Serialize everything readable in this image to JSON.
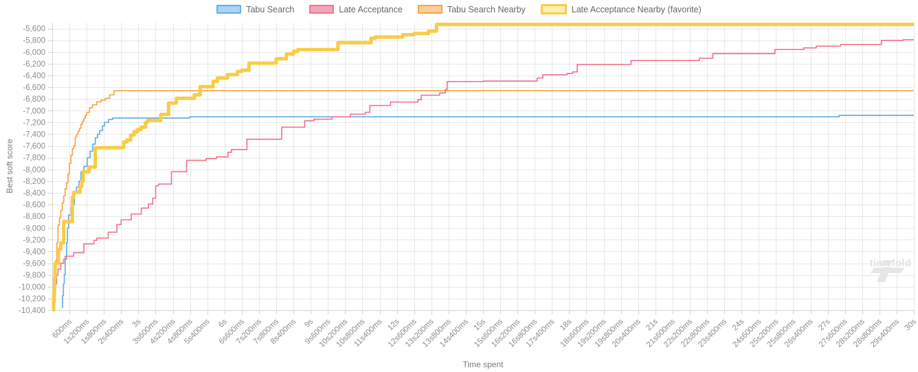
{
  "legend": {
    "items": [
      {
        "label": "Tabu Search",
        "fill": "#a9d3f2",
        "border": "#64aee6",
        "border_width": 2
      },
      {
        "label": "Late Acceptance",
        "fill": "#f7a3ba",
        "border": "#f2758f",
        "border_width": 2
      },
      {
        "label": "Tabu Search Nearby",
        "fill": "#fbcd99",
        "border": "#f8a444",
        "border_width": 2
      },
      {
        "label": "Late Acceptance Nearby (favorite)",
        "fill": "#fbf0af",
        "border": "#f8cc47",
        "border_width": 3
      }
    ]
  },
  "axes": {
    "y_title": "Best soft score",
    "x_title": "Time spent"
  },
  "watermark": {
    "text": "timefold"
  },
  "chart_data": {
    "type": "line",
    "step": true,
    "title": "",
    "xlabel": "Time spent",
    "ylabel": "Best soft score",
    "xlim": [
      0,
      30
    ],
    "ylim": [
      -10400,
      -5500
    ],
    "grid": true,
    "legend_position": "top",
    "grid_color": "#e8e8e8",
    "axis_color": "#d4d4d4",
    "tick_label_color": "#8c8c8c",
    "y_ticks": [
      [
        -5600,
        "-5,600"
      ],
      [
        -5800,
        "-5,800"
      ],
      [
        -6000,
        "-6,000"
      ],
      [
        -6200,
        "-6,200"
      ],
      [
        -6400,
        "-6,400"
      ],
      [
        -6600,
        "-6,600"
      ],
      [
        -6800,
        "-6,800"
      ],
      [
        -7000,
        "-7,000"
      ],
      [
        -7200,
        "-7,200"
      ],
      [
        -7400,
        "-7,400"
      ],
      [
        -7600,
        "-7,600"
      ],
      [
        -7800,
        "-7,800"
      ],
      [
        -8000,
        "-8,000"
      ],
      [
        -8200,
        "-8,200"
      ],
      [
        -8400,
        "-8,400"
      ],
      [
        -8600,
        "-8,600"
      ],
      [
        -8800,
        "-8,800"
      ],
      [
        -9000,
        "-9,000"
      ],
      [
        -9200,
        "-9,200"
      ],
      [
        -9400,
        "-9,400"
      ],
      [
        -9600,
        "-9,600"
      ],
      [
        -9800,
        "-9,800"
      ],
      [
        -10000,
        "-10,000"
      ],
      [
        -10200,
        "-10,200"
      ],
      [
        -10400,
        "-10,400"
      ]
    ],
    "x_ticks": [
      [
        0.6,
        "600ms"
      ],
      [
        1.2,
        "1s200ms"
      ],
      [
        1.8,
        "1s800ms"
      ],
      [
        2.4,
        "2s400ms"
      ],
      [
        3,
        "3s"
      ],
      [
        3.6,
        "3s600ms"
      ],
      [
        4.2,
        "4s200ms"
      ],
      [
        4.8,
        "4s800ms"
      ],
      [
        5.4,
        "5s400ms"
      ],
      [
        6,
        "6s"
      ],
      [
        6.6,
        "6s600ms"
      ],
      [
        7.2,
        "7s200ms"
      ],
      [
        7.8,
        "7s800ms"
      ],
      [
        8.4,
        "8s400ms"
      ],
      [
        9,
        "9s"
      ],
      [
        9.6,
        "9s600ms"
      ],
      [
        10.2,
        "10s200ms"
      ],
      [
        10.8,
        "10s800ms"
      ],
      [
        11.4,
        "11s400ms"
      ],
      [
        12,
        "12s"
      ],
      [
        12.6,
        "12s600ms"
      ],
      [
        13.2,
        "13s200ms"
      ],
      [
        13.8,
        "13s800ms"
      ],
      [
        14.4,
        "14s400ms"
      ],
      [
        15,
        "15s"
      ],
      [
        15.6,
        "15s600ms"
      ],
      [
        16.2,
        "16s200ms"
      ],
      [
        16.8,
        "16s800ms"
      ],
      [
        17.4,
        "17s400ms"
      ],
      [
        18,
        "18s"
      ],
      [
        18.6,
        "18s600ms"
      ],
      [
        19.2,
        "19s200ms"
      ],
      [
        19.8,
        "19s800ms"
      ],
      [
        20.4,
        "20s400ms"
      ],
      [
        21,
        "21s"
      ],
      [
        21.6,
        "21s600ms"
      ],
      [
        22.2,
        "22s200ms"
      ],
      [
        22.8,
        "22s800ms"
      ],
      [
        23.4,
        "23s400ms"
      ],
      [
        24,
        "24s"
      ],
      [
        24.6,
        "24s600ms"
      ],
      [
        25.2,
        "25s200ms"
      ],
      [
        25.8,
        "25s800ms"
      ],
      [
        26.4,
        "26s400ms"
      ],
      [
        27,
        "27s"
      ],
      [
        27.6,
        "27s600ms"
      ],
      [
        28.2,
        "28s200ms"
      ],
      [
        28.8,
        "28s800ms"
      ],
      [
        29.4,
        "29s400ms"
      ],
      [
        30,
        "30s"
      ]
    ],
    "series": [
      {
        "id": "tabu-search",
        "name": "Tabu Search",
        "color": "#64aee6",
        "width": 1.7,
        "points": [
          [
            0.33,
            -10350
          ],
          [
            0.36,
            -10150
          ],
          [
            0.39,
            -9950
          ],
          [
            0.42,
            -9790
          ],
          [
            0.45,
            -9480
          ],
          [
            0.5,
            -9250
          ],
          [
            0.53,
            -9000
          ],
          [
            0.57,
            -8780
          ],
          [
            0.65,
            -8650
          ],
          [
            0.7,
            -8600
          ],
          [
            0.77,
            -8390
          ],
          [
            0.85,
            -8300
          ],
          [
            0.93,
            -8200
          ],
          [
            1.0,
            -8040
          ],
          [
            1.1,
            -7950
          ],
          [
            1.22,
            -7800
          ],
          [
            1.32,
            -7690
          ],
          [
            1.41,
            -7570
          ],
          [
            1.5,
            -7460
          ],
          [
            1.58,
            -7400
          ],
          [
            1.65,
            -7340
          ],
          [
            1.75,
            -7260
          ],
          [
            1.82,
            -7200
          ],
          [
            1.96,
            -7150
          ],
          [
            2.1,
            -7125
          ],
          [
            4.78,
            -7105
          ],
          [
            27.4,
            -7080
          ],
          [
            30,
            -7080
          ]
        ]
      },
      {
        "id": "tabu-search-nearby",
        "name": "Tabu Search Nearby",
        "color": "#f8a444",
        "width": 1.7,
        "points": [
          [
            0.07,
            -10260
          ],
          [
            0.1,
            -9900
          ],
          [
            0.13,
            -9550
          ],
          [
            0.16,
            -9250
          ],
          [
            0.2,
            -8950
          ],
          [
            0.25,
            -8830
          ],
          [
            0.3,
            -8700
          ],
          [
            0.35,
            -8570
          ],
          [
            0.4,
            -8450
          ],
          [
            0.45,
            -8330
          ],
          [
            0.5,
            -8230
          ],
          [
            0.55,
            -8080
          ],
          [
            0.6,
            -7900
          ],
          [
            0.65,
            -7760
          ],
          [
            0.7,
            -7650
          ],
          [
            0.75,
            -7600
          ],
          [
            0.8,
            -7450
          ],
          [
            0.85,
            -7400
          ],
          [
            0.9,
            -7350
          ],
          [
            0.95,
            -7300
          ],
          [
            1.0,
            -7230
          ],
          [
            1.05,
            -7180
          ],
          [
            1.1,
            -7130
          ],
          [
            1.15,
            -7080
          ],
          [
            1.2,
            -7030
          ],
          [
            1.3,
            -6950
          ],
          [
            1.4,
            -6900
          ],
          [
            1.55,
            -6850
          ],
          [
            1.7,
            -6820
          ],
          [
            1.85,
            -6790
          ],
          [
            2.0,
            -6730
          ],
          [
            2.15,
            -6660
          ],
          [
            30,
            -6660
          ]
        ]
      },
      {
        "id": "late-acceptance",
        "name": "Late Acceptance",
        "color": "#f2758f",
        "width": 1.7,
        "points": [
          [
            0.05,
            -10200
          ],
          [
            0.08,
            -10050
          ],
          [
            0.1,
            -9950
          ],
          [
            0.15,
            -9800
          ],
          [
            0.2,
            -9700
          ],
          [
            0.3,
            -9600
          ],
          [
            0.4,
            -9530
          ],
          [
            0.5,
            -9480
          ],
          [
            0.75,
            -9420
          ],
          [
            1.1,
            -9270
          ],
          [
            1.45,
            -9210
          ],
          [
            1.55,
            -9170
          ],
          [
            1.95,
            -9070
          ],
          [
            2.25,
            -8940
          ],
          [
            2.4,
            -8860
          ],
          [
            2.75,
            -8760
          ],
          [
            3.1,
            -8660
          ],
          [
            3.35,
            -8590
          ],
          [
            3.5,
            -8490
          ],
          [
            3.6,
            -8280
          ],
          [
            3.7,
            -8250
          ],
          [
            4.15,
            -8040
          ],
          [
            4.68,
            -7846
          ],
          [
            5.36,
            -7815
          ],
          [
            5.72,
            -7787
          ],
          [
            6.12,
            -7709
          ],
          [
            6.24,
            -7662
          ],
          [
            6.78,
            -7487
          ],
          [
            7.99,
            -7281
          ],
          [
            8.79,
            -7172
          ],
          [
            9.11,
            -7144
          ],
          [
            9.74,
            -7106
          ],
          [
            10.38,
            -7059
          ],
          [
            10.9,
            -7028
          ],
          [
            11.06,
            -6911
          ],
          [
            11.78,
            -6853
          ],
          [
            12.73,
            -6814
          ],
          [
            12.85,
            -6736
          ],
          [
            13.49,
            -6697
          ],
          [
            13.69,
            -6639
          ],
          [
            13.75,
            -6503
          ],
          [
            15.01,
            -6495
          ],
          [
            16.88,
            -6444
          ],
          [
            17.08,
            -6386
          ],
          [
            17.92,
            -6367
          ],
          [
            18.12,
            -6340
          ],
          [
            18.28,
            -6211
          ],
          [
            20.15,
            -6145
          ],
          [
            22.53,
            -6106
          ],
          [
            23.0,
            -6028
          ],
          [
            25.16,
            -5958
          ],
          [
            26.16,
            -5930
          ],
          [
            26.6,
            -5900
          ],
          [
            27.45,
            -5872
          ],
          [
            28.87,
            -5802
          ],
          [
            29.63,
            -5790
          ],
          [
            30,
            -5790
          ]
        ]
      },
      {
        "id": "late-acceptance-nearby",
        "name": "Late Acceptance Nearby (favorite)",
        "color": "#f8cc47",
        "width": 5,
        "points": [
          [
            0.02,
            -10400
          ],
          [
            0.05,
            -10150
          ],
          [
            0.08,
            -9850
          ],
          [
            0.1,
            -9600
          ],
          [
            0.22,
            -9360
          ],
          [
            0.3,
            -9250
          ],
          [
            0.4,
            -8890
          ],
          [
            0.7,
            -8470
          ],
          [
            0.75,
            -8390
          ],
          [
            0.97,
            -8290
          ],
          [
            1.03,
            -8200
          ],
          [
            1.08,
            -8040
          ],
          [
            1.28,
            -7960
          ],
          [
            1.5,
            -7630
          ],
          [
            2.49,
            -7534
          ],
          [
            2.6,
            -7500
          ],
          [
            2.73,
            -7417
          ],
          [
            2.85,
            -7360
          ],
          [
            2.97,
            -7320
          ],
          [
            3.1,
            -7280
          ],
          [
            3.25,
            -7200
          ],
          [
            3.32,
            -7165
          ],
          [
            3.78,
            -7065
          ],
          [
            4.05,
            -6870
          ],
          [
            4.32,
            -6790
          ],
          [
            4.95,
            -6730
          ],
          [
            5.15,
            -6590
          ],
          [
            5.6,
            -6500
          ],
          [
            5.75,
            -6445
          ],
          [
            6.1,
            -6385
          ],
          [
            6.45,
            -6330
          ],
          [
            6.6,
            -6310
          ],
          [
            6.85,
            -6190
          ],
          [
            7.8,
            -6115
          ],
          [
            8.15,
            -6035
          ],
          [
            8.4,
            -5990
          ],
          [
            8.55,
            -5958
          ],
          [
            9.95,
            -5840
          ],
          [
            11.1,
            -5765
          ],
          [
            11.25,
            -5745
          ],
          [
            12.2,
            -5705
          ],
          [
            12.6,
            -5685
          ],
          [
            13.1,
            -5645
          ],
          [
            13.38,
            -5530
          ],
          [
            30,
            -5530
          ]
        ]
      }
    ]
  }
}
